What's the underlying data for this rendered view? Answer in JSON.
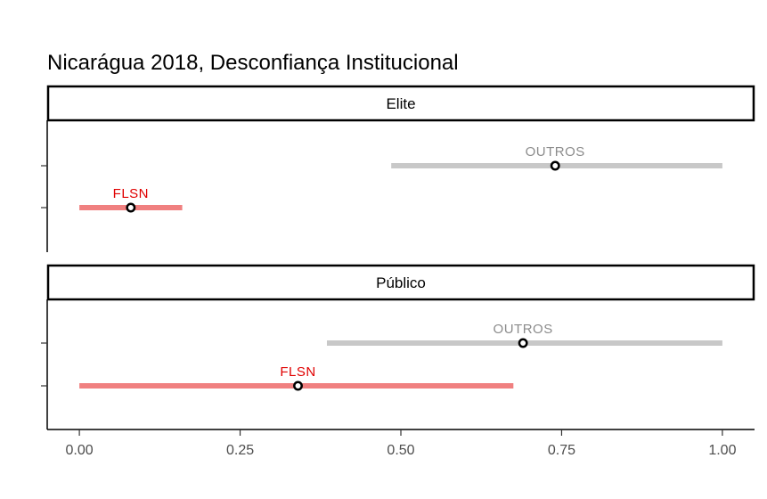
{
  "chart_data": {
    "type": "errorbar",
    "title": "Nicarágua 2018, Desconfiança Institucional",
    "xlim": [
      -0.05,
      1.05
    ],
    "x_ticks": [
      0,
      0.25,
      0.5,
      0.75,
      1
    ],
    "x_tick_labels": [
      "0.00",
      "0.25",
      "0.50",
      "0.75",
      "1.00"
    ],
    "grid": false,
    "colors": {
      "FLSN": "#f08080",
      "FLSN_label": "#e00000",
      "OUTROS": "#c8c8c8",
      "OUTROS_label": "#8c8c8c"
    },
    "panels": [
      {
        "name": "Elite",
        "series": [
          {
            "name": "OUTROS",
            "estimate": 0.74,
            "low": 0.485,
            "high": 1.0
          },
          {
            "name": "FLSN",
            "estimate": 0.08,
            "low": 0.0,
            "high": 0.16
          }
        ]
      },
      {
        "name": "Público",
        "series": [
          {
            "name": "OUTROS",
            "estimate": 0.69,
            "low": 0.385,
            "high": 1.0
          },
          {
            "name": "FLSN",
            "estimate": 0.34,
            "low": 0.0,
            "high": 0.675
          }
        ]
      }
    ]
  }
}
